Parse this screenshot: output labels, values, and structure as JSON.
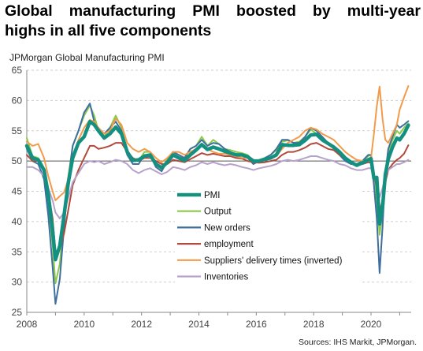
{
  "title_line1": "Global manufacturing PMI boosted by multi-year",
  "title_line2": "highs in all five components",
  "subtitle": "JPMorgan Global Manufacturing PMI",
  "source": "Sources: IHS Markit, JPMorgan.",
  "chart_data": {
    "type": "line",
    "title": "Global manufacturing PMI boosted by multi-year highs in all five components",
    "subtitle": "JPMorgan Global Manufacturing PMI",
    "xlabel": "",
    "ylabel": "",
    "xlim": [
      2008.0,
      2021.4
    ],
    "ylim": [
      25,
      65
    ],
    "yticks": [
      25,
      30,
      35,
      40,
      45,
      50,
      55,
      60,
      65
    ],
    "xticks": [
      "2008",
      "2010",
      "2012",
      "2014",
      "2016",
      "2018",
      "2020"
    ],
    "reference_line": 50,
    "grid": "horizontal dashed",
    "legend_position": "center",
    "series": [
      {
        "name": "PMI",
        "color": "#13907f",
        "x": [
          2008.0,
          2008.2,
          2008.4,
          2008.6,
          2008.75,
          2008.9,
          2009.0,
          2009.15,
          2009.3,
          2009.45,
          2009.6,
          2009.8,
          2010.0,
          2010.2,
          2010.35,
          2010.5,
          2010.7,
          2010.9,
          2011.1,
          2011.3,
          2011.5,
          2011.7,
          2011.9,
          2012.1,
          2012.3,
          2012.5,
          2012.7,
          2012.9,
          2013.1,
          2013.3,
          2013.5,
          2013.7,
          2013.9,
          2014.1,
          2014.3,
          2014.5,
          2014.7,
          2014.9,
          2015.1,
          2015.3,
          2015.5,
          2015.7,
          2015.9,
          2016.1,
          2016.3,
          2016.5,
          2016.7,
          2016.9,
          2017.1,
          2017.3,
          2017.5,
          2017.7,
          2017.9,
          2018.1,
          2018.3,
          2018.5,
          2018.7,
          2018.9,
          2019.1,
          2019.3,
          2019.5,
          2019.7,
          2019.9,
          2020.0,
          2020.1,
          2020.2,
          2020.3,
          2020.4,
          2020.5,
          2020.6,
          2020.75,
          2020.9,
          2021.0,
          2021.15,
          2021.3
        ],
        "values": [
          52.5,
          50.5,
          50.2,
          48.5,
          44.5,
          38.5,
          33.7,
          36.0,
          41.0,
          46.5,
          50.5,
          53.0,
          54.0,
          56.5,
          56.0,
          55.0,
          53.8,
          54.5,
          55.6,
          54.5,
          51.5,
          50.1,
          50.2,
          50.8,
          51.0,
          49.5,
          48.9,
          49.8,
          51.0,
          50.5,
          50.1,
          51.0,
          51.8,
          52.7,
          51.9,
          52.3,
          52.0,
          51.6,
          51.3,
          51.0,
          51.0,
          50.7,
          50.0,
          50.0,
          50.3,
          50.5,
          51.0,
          52.7,
          52.6,
          52.6,
          52.7,
          53.4,
          54.3,
          54.4,
          53.5,
          52.9,
          52.3,
          51.5,
          50.5,
          49.8,
          49.3,
          49.7,
          50.2,
          50.4,
          47.1,
          47.3,
          39.6,
          42.3,
          47.8,
          50.3,
          52.3,
          53.8,
          53.5,
          54.5,
          55.9
        ]
      },
      {
        "name": "Output",
        "color": "#8cc84b",
        "x": [
          2008.0,
          2008.2,
          2008.4,
          2008.6,
          2008.75,
          2008.9,
          2009.0,
          2009.15,
          2009.3,
          2009.45,
          2009.6,
          2009.8,
          2010.0,
          2010.2,
          2010.35,
          2010.5,
          2010.7,
          2010.9,
          2011.1,
          2011.3,
          2011.5,
          2011.7,
          2011.9,
          2012.1,
          2012.3,
          2012.5,
          2012.7,
          2012.9,
          2013.1,
          2013.3,
          2013.5,
          2013.7,
          2013.9,
          2014.1,
          2014.3,
          2014.5,
          2014.7,
          2014.9,
          2015.1,
          2015.3,
          2015.5,
          2015.7,
          2015.9,
          2016.1,
          2016.3,
          2016.5,
          2016.7,
          2016.9,
          2017.1,
          2017.3,
          2017.5,
          2017.7,
          2017.9,
          2018.1,
          2018.3,
          2018.5,
          2018.7,
          2018.9,
          2019.1,
          2019.3,
          2019.5,
          2019.7,
          2019.9,
          2020.0,
          2020.1,
          2020.2,
          2020.3,
          2020.4,
          2020.5,
          2020.6,
          2020.75,
          2020.9,
          2021.0,
          2021.15,
          2021.3
        ],
        "values": [
          53.8,
          50.8,
          50.5,
          48.0,
          43.5,
          36.0,
          29.8,
          33.0,
          40.5,
          47.5,
          52.5,
          55.0,
          57.5,
          59.2,
          57.5,
          55.0,
          54.0,
          55.5,
          57.5,
          55.5,
          51.5,
          50.0,
          50.0,
          51.5,
          51.5,
          49.5,
          48.6,
          50.2,
          51.5,
          51.0,
          50.5,
          52.0,
          52.5,
          54.0,
          52.5,
          53.5,
          52.8,
          52.0,
          51.8,
          51.5,
          51.3,
          51.0,
          50.0,
          50.2,
          50.5,
          51.0,
          51.8,
          53.2,
          53.4,
          53.0,
          53.2,
          54.0,
          55.2,
          54.5,
          53.8,
          53.0,
          52.5,
          51.5,
          50.5,
          49.8,
          49.5,
          50.0,
          50.8,
          51.0,
          47.0,
          43.5,
          37.8,
          41.5,
          47.5,
          51.5,
          53.5,
          55.0,
          54.5,
          55.5,
          56.2
        ]
      },
      {
        "name": "New orders",
        "color": "#3f6f9e",
        "x": [
          2008.0,
          2008.2,
          2008.4,
          2008.6,
          2008.75,
          2008.9,
          2009.0,
          2009.15,
          2009.3,
          2009.45,
          2009.6,
          2009.8,
          2010.0,
          2010.2,
          2010.35,
          2010.5,
          2010.7,
          2010.9,
          2011.1,
          2011.3,
          2011.5,
          2011.7,
          2011.9,
          2012.1,
          2012.3,
          2012.5,
          2012.7,
          2012.9,
          2013.1,
          2013.3,
          2013.5,
          2013.7,
          2013.9,
          2014.1,
          2014.3,
          2014.5,
          2014.7,
          2014.9,
          2015.1,
          2015.3,
          2015.5,
          2015.7,
          2015.9,
          2016.1,
          2016.3,
          2016.5,
          2016.7,
          2016.9,
          2017.1,
          2017.3,
          2017.5,
          2017.7,
          2017.9,
          2018.1,
          2018.3,
          2018.5,
          2018.7,
          2018.9,
          2019.1,
          2019.3,
          2019.5,
          2019.7,
          2019.9,
          2020.0,
          2020.1,
          2020.2,
          2020.3,
          2020.4,
          2020.5,
          2020.6,
          2020.75,
          2020.9,
          2021.0,
          2021.15,
          2021.3
        ],
        "values": [
          52.0,
          50.0,
          49.5,
          47.0,
          41.0,
          32.5,
          26.4,
          30.5,
          39.0,
          47.0,
          52.5,
          55.0,
          58.0,
          59.5,
          56.5,
          55.0,
          54.5,
          55.5,
          56.5,
          55.0,
          51.0,
          49.5,
          49.5,
          51.0,
          51.0,
          49.0,
          48.3,
          50.0,
          51.5,
          51.0,
          50.5,
          52.0,
          52.5,
          53.5,
          52.5,
          53.0,
          52.8,
          52.0,
          51.5,
          51.0,
          51.0,
          50.5,
          49.5,
          50.0,
          50.5,
          51.0,
          52.0,
          53.5,
          53.5,
          53.0,
          53.0,
          54.0,
          55.5,
          55.0,
          54.0,
          53.0,
          52.0,
          51.0,
          50.0,
          49.5,
          49.5,
          50.0,
          51.0,
          51.0,
          46.0,
          40.5,
          31.5,
          39.0,
          48.0,
          52.0,
          54.0,
          56.0,
          55.5,
          56.0,
          56.6
        ]
      },
      {
        "name": "employment",
        "color": "#b04a3c",
        "x": [
          2008.0,
          2008.2,
          2008.4,
          2008.6,
          2008.75,
          2008.9,
          2009.0,
          2009.15,
          2009.3,
          2009.45,
          2009.6,
          2009.8,
          2010.0,
          2010.2,
          2010.35,
          2010.5,
          2010.7,
          2010.9,
          2011.1,
          2011.3,
          2011.5,
          2011.7,
          2011.9,
          2012.1,
          2012.3,
          2012.5,
          2012.7,
          2012.9,
          2013.1,
          2013.3,
          2013.5,
          2013.7,
          2013.9,
          2014.1,
          2014.3,
          2014.5,
          2014.7,
          2014.9,
          2015.1,
          2015.3,
          2015.5,
          2015.7,
          2015.9,
          2016.1,
          2016.3,
          2016.5,
          2016.7,
          2016.9,
          2017.1,
          2017.3,
          2017.5,
          2017.7,
          2017.9,
          2018.1,
          2018.3,
          2018.5,
          2018.7,
          2018.9,
          2019.1,
          2019.3,
          2019.5,
          2019.7,
          2019.9,
          2020.0,
          2020.1,
          2020.2,
          2020.3,
          2020.4,
          2020.5,
          2020.6,
          2020.75,
          2020.9,
          2021.0,
          2021.15,
          2021.3
        ],
        "values": [
          51.0,
          50.0,
          50.0,
          48.5,
          45.0,
          40.5,
          35.0,
          35.5,
          38.0,
          42.0,
          46.0,
          48.5,
          50.5,
          52.5,
          52.5,
          52.0,
          52.2,
          52.5,
          53.0,
          53.0,
          51.5,
          50.5,
          50.0,
          50.5,
          50.5,
          50.0,
          49.5,
          49.5,
          50.2,
          50.0,
          49.8,
          50.3,
          50.8,
          51.3,
          51.0,
          51.2,
          51.0,
          50.8,
          50.8,
          50.5,
          50.4,
          50.0,
          49.8,
          49.7,
          49.8,
          50.0,
          50.2,
          51.0,
          51.5,
          51.5,
          51.8,
          52.2,
          52.8,
          53.0,
          52.5,
          52.0,
          51.8,
          51.0,
          50.5,
          49.9,
          49.5,
          49.5,
          49.8,
          49.7,
          48.0,
          45.5,
          41.5,
          43.5,
          46.5,
          48.5,
          49.5,
          50.2,
          50.5,
          51.2,
          52.6
        ]
      },
      {
        "name": "Suppliers' delivery times (inverted)",
        "color": "#f29b4a",
        "x": [
          2008.0,
          2008.2,
          2008.4,
          2008.6,
          2008.75,
          2008.9,
          2009.0,
          2009.15,
          2009.3,
          2009.45,
          2009.6,
          2009.8,
          2010.0,
          2010.2,
          2010.35,
          2010.5,
          2010.7,
          2010.9,
          2011.1,
          2011.3,
          2011.5,
          2011.7,
          2011.9,
          2012.1,
          2012.3,
          2012.5,
          2012.7,
          2012.9,
          2013.1,
          2013.3,
          2013.5,
          2013.7,
          2013.9,
          2014.1,
          2014.3,
          2014.5,
          2014.7,
          2014.9,
          2015.1,
          2015.3,
          2015.5,
          2015.7,
          2015.9,
          2016.1,
          2016.3,
          2016.5,
          2016.7,
          2016.9,
          2017.1,
          2017.3,
          2017.5,
          2017.7,
          2017.9,
          2018.1,
          2018.3,
          2018.5,
          2018.7,
          2018.9,
          2019.1,
          2019.3,
          2019.5,
          2019.7,
          2019.9,
          2020.0,
          2020.1,
          2020.2,
          2020.3,
          2020.4,
          2020.5,
          2020.6,
          2020.75,
          2020.9,
          2021.0,
          2021.15,
          2021.3
        ],
        "values": [
          53.2,
          52.5,
          52.8,
          50.5,
          47.5,
          45.0,
          43.5,
          44.2,
          44.8,
          47.0,
          50.5,
          53.5,
          55.5,
          56.8,
          56.5,
          55.5,
          54.5,
          55.0,
          57.0,
          56.0,
          53.0,
          52.0,
          51.5,
          52.0,
          51.5,
          50.5,
          49.8,
          50.5,
          51.5,
          51.5,
          51.0,
          51.5,
          52.0,
          52.8,
          52.0,
          51.5,
          51.2,
          51.2,
          51.0,
          50.8,
          50.5,
          50.5,
          50.0,
          50.0,
          50.2,
          50.5,
          50.8,
          52.0,
          53.0,
          53.5,
          54.0,
          55.0,
          55.5,
          55.2,
          54.5,
          54.0,
          53.5,
          52.5,
          51.5,
          50.8,
          50.2,
          50.0,
          50.2,
          50.5,
          54.5,
          59.0,
          62.3,
          57.0,
          53.5,
          53.0,
          54.5,
          56.0,
          58.5,
          60.5,
          62.4
        ]
      },
      {
        "name": "Inventories",
        "color": "#b7a2cc",
        "x": [
          2008.0,
          2008.2,
          2008.4,
          2008.6,
          2008.75,
          2008.9,
          2009.0,
          2009.15,
          2009.3,
          2009.45,
          2009.6,
          2009.8,
          2010.0,
          2010.2,
          2010.35,
          2010.5,
          2010.7,
          2010.9,
          2011.1,
          2011.3,
          2011.5,
          2011.7,
          2011.9,
          2012.1,
          2012.3,
          2012.5,
          2012.7,
          2012.9,
          2013.1,
          2013.3,
          2013.5,
          2013.7,
          2013.9,
          2014.1,
          2014.3,
          2014.5,
          2014.7,
          2014.9,
          2015.1,
          2015.3,
          2015.5,
          2015.7,
          2015.9,
          2016.1,
          2016.3,
          2016.5,
          2016.7,
          2016.9,
          2017.1,
          2017.3,
          2017.5,
          2017.7,
          2017.9,
          2018.1,
          2018.3,
          2018.5,
          2018.7,
          2018.9,
          2019.1,
          2019.3,
          2019.5,
          2019.7,
          2019.9,
          2020.0,
          2020.1,
          2020.2,
          2020.3,
          2020.4,
          2020.5,
          2020.6,
          2020.75,
          2020.9,
          2021.0,
          2021.15,
          2021.3
        ],
        "values": [
          49.0,
          49.0,
          48.5,
          47.5,
          45.5,
          43.5,
          41.5,
          40.5,
          41.5,
          44.0,
          46.5,
          48.0,
          49.5,
          50.0,
          49.8,
          50.0,
          49.5,
          49.8,
          50.2,
          50.0,
          49.5,
          48.5,
          48.0,
          48.5,
          48.8,
          48.3,
          47.8,
          48.2,
          49.0,
          48.8,
          48.5,
          49.0,
          49.3,
          49.8,
          49.5,
          49.8,
          49.5,
          49.3,
          49.5,
          49.3,
          49.0,
          48.8,
          48.5,
          48.8,
          49.0,
          49.2,
          49.5,
          50.0,
          50.2,
          50.0,
          50.2,
          50.5,
          50.8,
          50.8,
          50.5,
          50.2,
          50.0,
          49.5,
          49.3,
          48.8,
          48.5,
          48.5,
          48.8,
          48.8,
          47.5,
          46.5,
          44.0,
          45.5,
          47.5,
          48.5,
          49.0,
          49.5,
          49.5,
          49.8,
          50.2
        ]
      }
    ]
  }
}
